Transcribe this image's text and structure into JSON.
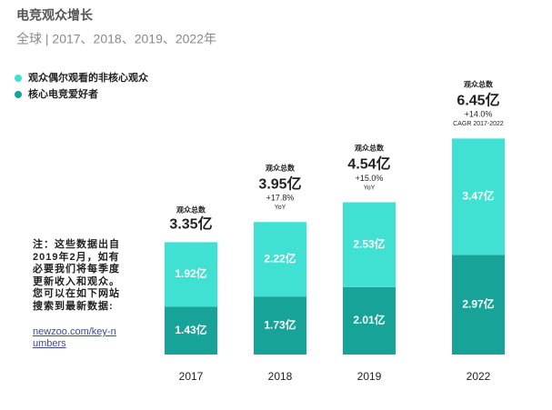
{
  "chart_data": {
    "type": "stacked_bar",
    "title": "电竞观众增长",
    "subtitle": "全球 | 2017、2018、2019、2022年",
    "categories": [
      "2017",
      "2018",
      "2019",
      "2022"
    ],
    "series": [
      {
        "name": "核心电竞爱好者",
        "color": "#17a398",
        "values": [
          1.43,
          1.73,
          2.01,
          2.97
        ],
        "value_labels": [
          "1.43亿",
          "1.73亿",
          "2.01亿",
          "2.97亿"
        ]
      },
      {
        "name": "观众偶尔观看的非核心观众",
        "color": "#40e0d3",
        "values": [
          1.92,
          2.22,
          2.53,
          3.47
        ],
        "value_labels": [
          "1.92亿",
          "2.22亿",
          "2.53亿",
          "3.47亿"
        ]
      }
    ],
    "legend_order": [
      1,
      0
    ],
    "totals": {
      "name": "观众总数",
      "values": [
        3.35,
        3.95,
        4.54,
        6.45
      ],
      "value_labels": [
        "3.35亿",
        "3.95亿",
        "4.54亿",
        "6.45亿"
      ]
    },
    "growth": {
      "values": [
        null,
        17.8,
        15.0,
        14.0
      ],
      "value_labels": [
        null,
        "+17.8%",
        "+15.0%",
        "+14.0%"
      ],
      "notes": [
        null,
        "YoY",
        "YoY",
        "CAGR 2017-2022"
      ]
    },
    "note": [
      "注：这些数据出自",
      "2019年2月，如有",
      "必要我们将每季度",
      "更新收入和观众。",
      "您可以在如下网站",
      "搜索到最新数据:"
    ],
    "link": "newzoo.com/key-numbers"
  }
}
